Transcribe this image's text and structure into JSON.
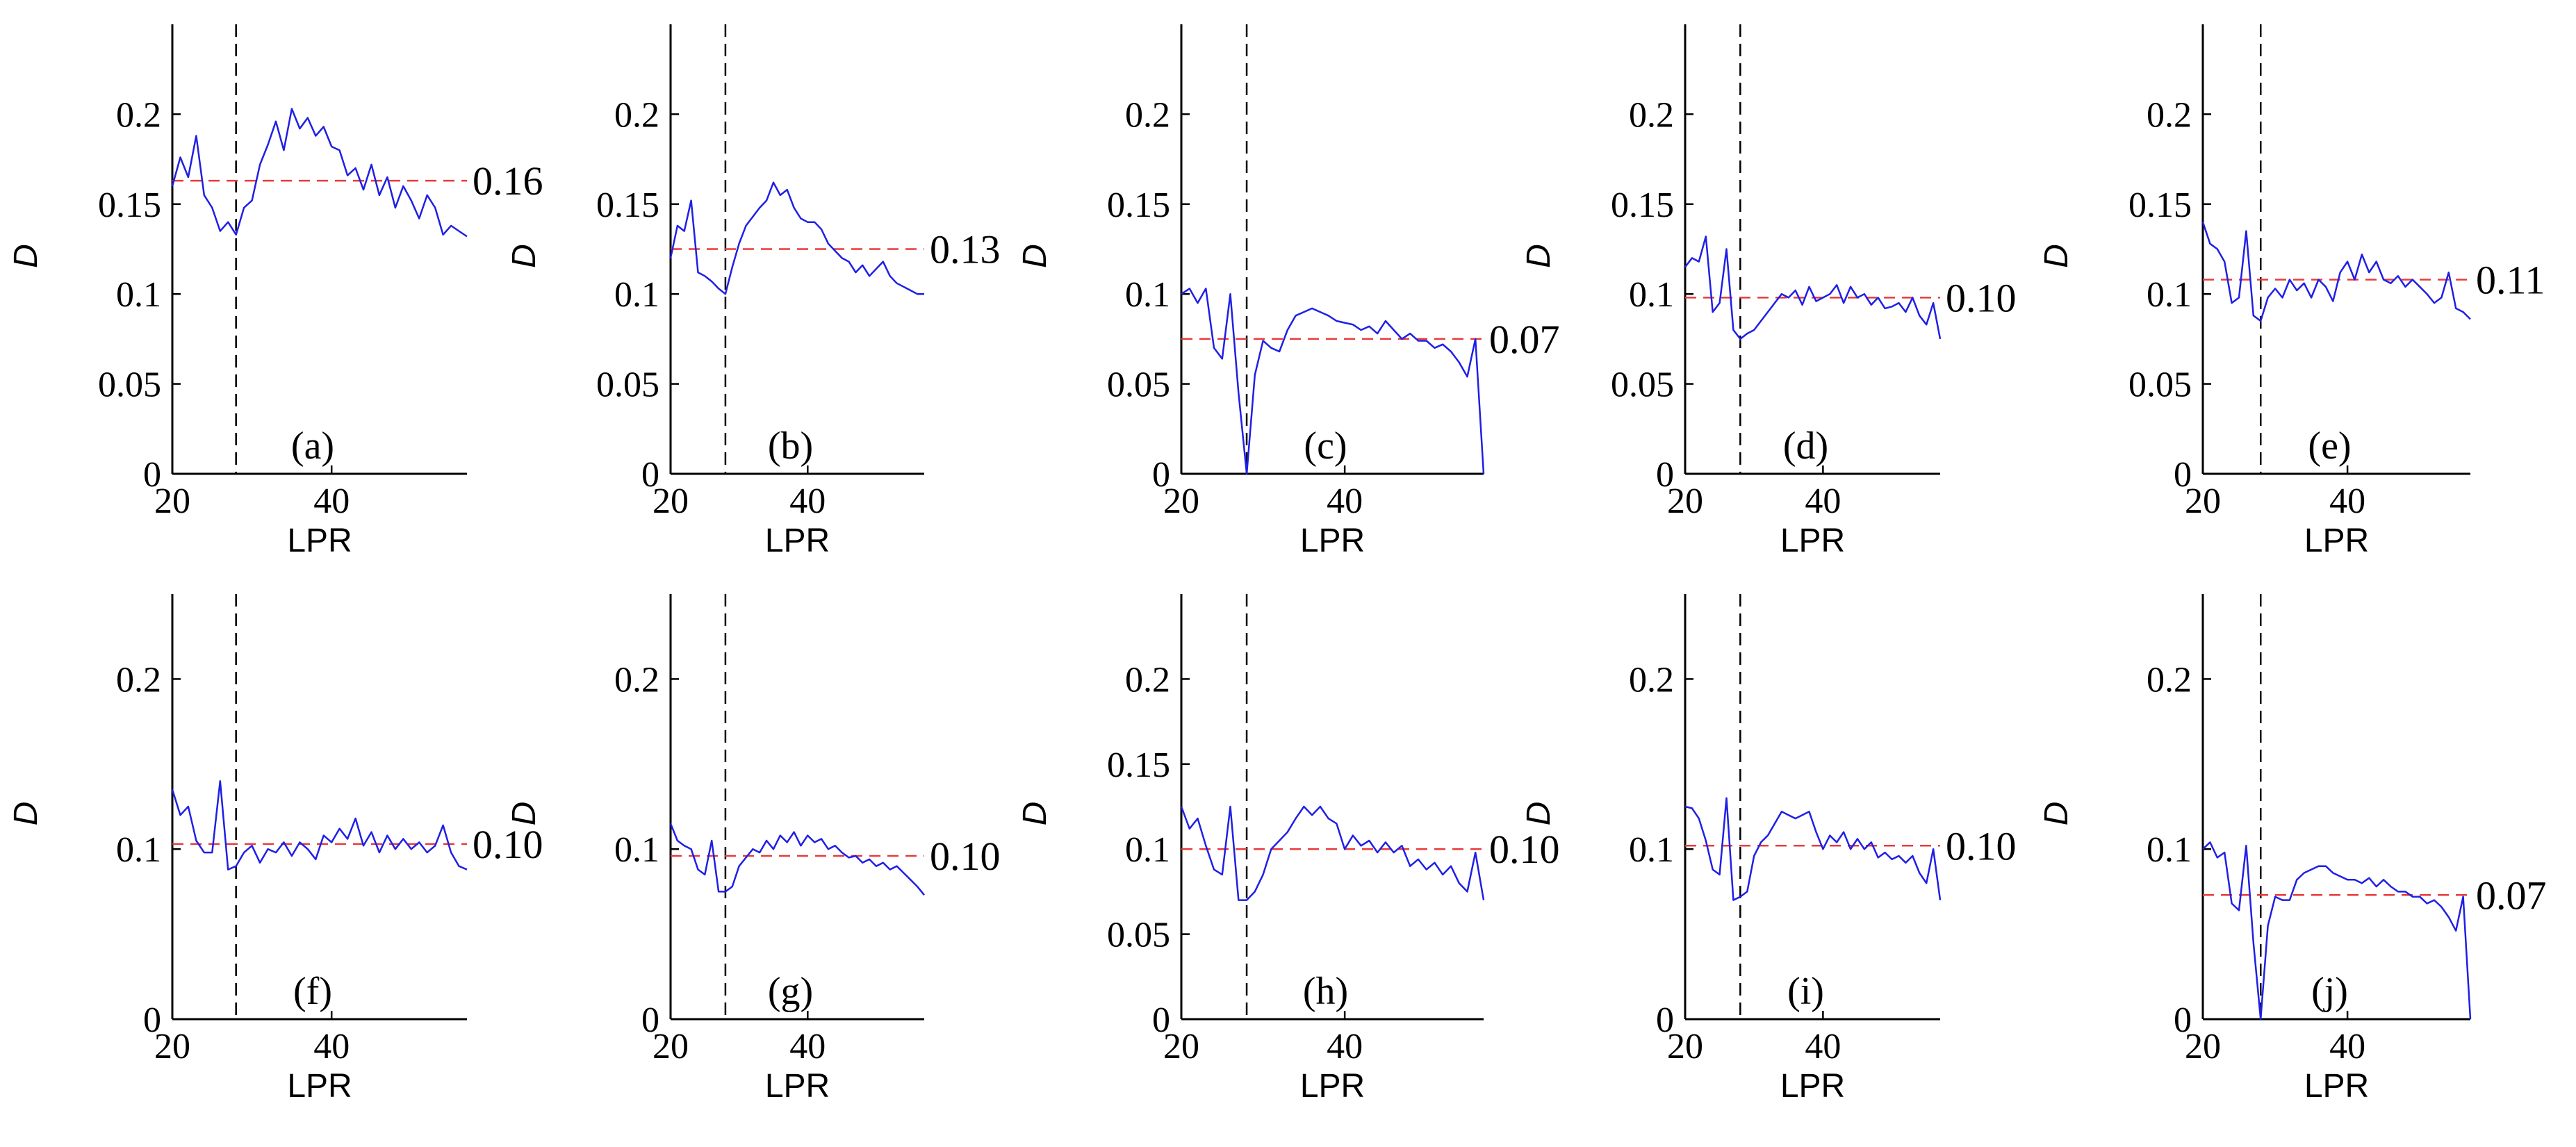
{
  "figure": {
    "line_color": "#1f1fe6",
    "mean_color": "#e83c3c",
    "axis_color": "#000000"
  },
  "chart_data": [
    {
      "type": "line",
      "panel_label": "(a)",
      "xlabel": "LPR",
      "ylabel": "D",
      "xlim": [
        20,
        57
      ],
      "ylim": [
        0,
        0.25
      ],
      "xticks": [
        "20",
        "40"
      ],
      "yticks": [
        "0",
        "0.05",
        "0.1",
        "0.15",
        "0.2"
      ],
      "vline_x": 28,
      "mean_value": 0.163,
      "mean_label": "0.16",
      "series": [
        {
          "x": [
            20,
            21,
            22,
            23,
            24,
            25,
            26,
            27,
            28,
            29,
            30,
            31,
            32,
            33,
            34,
            35,
            36,
            37,
            38,
            39,
            40,
            41,
            42,
            43,
            44,
            45,
            46,
            47,
            48,
            49,
            50,
            51,
            52,
            53,
            54,
            55,
            56,
            57
          ],
          "y": [
            0.16,
            0.176,
            0.165,
            0.188,
            0.155,
            0.148,
            0.135,
            0.14,
            0.133,
            0.148,
            0.152,
            0.172,
            0.183,
            0.196,
            0.18,
            0.203,
            0.192,
            0.198,
            0.188,
            0.193,
            0.182,
            0.18,
            0.166,
            0.17,
            0.158,
            0.172,
            0.155,
            0.165,
            0.148,
            0.16,
            0.152,
            0.142,
            0.155,
            0.148,
            0.133,
            0.138,
            0.135,
            0.132
          ]
        }
      ]
    },
    {
      "type": "line",
      "panel_label": "(b)",
      "xlabel": "LPR",
      "ylabel": "D",
      "xlim": [
        20,
        57
      ],
      "ylim": [
        0,
        0.25
      ],
      "xticks": [
        "20",
        "40"
      ],
      "yticks": [
        "0",
        "0.05",
        "0.1",
        "0.15",
        "0.2"
      ],
      "vline_x": 28,
      "mean_value": 0.125,
      "mean_label": "0.13",
      "series": [
        {
          "x": [
            20,
            21,
            22,
            23,
            24,
            25,
            26,
            27,
            28,
            29,
            30,
            31,
            32,
            33,
            34,
            35,
            36,
            37,
            38,
            39,
            40,
            41,
            42,
            43,
            44,
            45,
            46,
            47,
            48,
            49,
            50,
            51,
            52,
            53,
            54,
            55,
            56,
            57
          ],
          "y": [
            0.12,
            0.138,
            0.135,
            0.152,
            0.112,
            0.11,
            0.107,
            0.103,
            0.1,
            0.115,
            0.128,
            0.138,
            0.143,
            0.148,
            0.152,
            0.162,
            0.155,
            0.158,
            0.148,
            0.142,
            0.14,
            0.14,
            0.136,
            0.128,
            0.124,
            0.12,
            0.118,
            0.112,
            0.116,
            0.11,
            0.114,
            0.118,
            0.11,
            0.106,
            0.104,
            0.102,
            0.1,
            0.1
          ]
        }
      ]
    },
    {
      "type": "line",
      "panel_label": "(c)",
      "xlabel": "LPR",
      "ylabel": "D",
      "xlim": [
        20,
        57
      ],
      "ylim": [
        0,
        0.25
      ],
      "xticks": [
        "20",
        "40"
      ],
      "yticks": [
        "0",
        "0.05",
        "0.1",
        "0.15",
        "0.2"
      ],
      "vline_x": 28,
      "mean_value": 0.075,
      "mean_label": "0.07",
      "series": [
        {
          "x": [
            20,
            21,
            22,
            23,
            24,
            25,
            26,
            27,
            28,
            29,
            30,
            31,
            32,
            33,
            34,
            35,
            36,
            37,
            38,
            39,
            40,
            41,
            42,
            43,
            44,
            45,
            46,
            47,
            48,
            49,
            50,
            51,
            52,
            53,
            54,
            55,
            56,
            57
          ],
          "y": [
            0.1,
            0.103,
            0.095,
            0.103,
            0.07,
            0.064,
            0.1,
            0.045,
            0.0,
            0.055,
            0.074,
            0.07,
            0.068,
            0.08,
            0.088,
            0.09,
            0.092,
            0.09,
            0.088,
            0.085,
            0.084,
            0.083,
            0.08,
            0.082,
            0.078,
            0.085,
            0.08,
            0.075,
            0.078,
            0.074,
            0.074,
            0.07,
            0.072,
            0.068,
            0.062,
            0.054,
            0.075,
            0.0
          ]
        }
      ]
    },
    {
      "type": "line",
      "panel_label": "(d)",
      "xlabel": "LPR",
      "ylabel": "D",
      "xlim": [
        20,
        57
      ],
      "ylim": [
        0,
        0.25
      ],
      "xticks": [
        "20",
        "40"
      ],
      "yticks": [
        "0",
        "0.05",
        "0.1",
        "0.15",
        "0.2"
      ],
      "vline_x": 28,
      "mean_value": 0.098,
      "mean_label": "0.10",
      "series": [
        {
          "x": [
            20,
            21,
            22,
            23,
            24,
            25,
            26,
            27,
            28,
            29,
            30,
            31,
            32,
            33,
            34,
            35,
            36,
            37,
            38,
            39,
            40,
            41,
            42,
            43,
            44,
            45,
            46,
            47,
            48,
            49,
            50,
            51,
            52,
            53,
            54,
            55,
            56,
            57
          ],
          "y": [
            0.115,
            0.12,
            0.118,
            0.132,
            0.09,
            0.095,
            0.125,
            0.08,
            0.075,
            0.078,
            0.08,
            0.085,
            0.09,
            0.095,
            0.1,
            0.098,
            0.102,
            0.094,
            0.104,
            0.096,
            0.098,
            0.1,
            0.105,
            0.095,
            0.104,
            0.098,
            0.1,
            0.094,
            0.098,
            0.092,
            0.093,
            0.095,
            0.09,
            0.098,
            0.088,
            0.083,
            0.095,
            0.075
          ]
        }
      ]
    },
    {
      "type": "line",
      "panel_label": "(e)",
      "xlabel": "LPR",
      "ylabel": "D",
      "xlim": [
        20,
        57
      ],
      "ylim": [
        0,
        0.25
      ],
      "xticks": [
        "20",
        "40"
      ],
      "yticks": [
        "0",
        "0.05",
        "0.1",
        "0.15",
        "0.2"
      ],
      "vline_x": 28,
      "mean_value": 0.108,
      "mean_label": "0.11",
      "series": [
        {
          "x": [
            20,
            21,
            22,
            23,
            24,
            25,
            26,
            27,
            28,
            29,
            30,
            31,
            32,
            33,
            34,
            35,
            36,
            37,
            38,
            39,
            40,
            41,
            42,
            43,
            44,
            45,
            46,
            47,
            48,
            49,
            50,
            51,
            52,
            53,
            54,
            55,
            56,
            57
          ],
          "y": [
            0.14,
            0.128,
            0.125,
            0.118,
            0.095,
            0.098,
            0.135,
            0.088,
            0.085,
            0.098,
            0.103,
            0.098,
            0.108,
            0.102,
            0.106,
            0.098,
            0.108,
            0.104,
            0.096,
            0.112,
            0.118,
            0.108,
            0.122,
            0.112,
            0.118,
            0.108,
            0.106,
            0.11,
            0.104,
            0.108,
            0.104,
            0.1,
            0.095,
            0.098,
            0.112,
            0.092,
            0.09,
            0.086
          ]
        }
      ]
    },
    {
      "type": "line",
      "panel_label": "(f)",
      "xlabel": "LPR",
      "ylabel": "D",
      "xlim": [
        20,
        57
      ],
      "ylim": [
        0,
        0.25
      ],
      "xticks": [
        "20",
        "40"
      ],
      "yticks": [
        "0",
        "0.1",
        "0.2"
      ],
      "vline_x": 28,
      "mean_value": 0.103,
      "mean_label": "0.10",
      "series": [
        {
          "x": [
            20,
            21,
            22,
            23,
            24,
            25,
            26,
            27,
            28,
            29,
            30,
            31,
            32,
            33,
            34,
            35,
            36,
            37,
            38,
            39,
            40,
            41,
            42,
            43,
            44,
            45,
            46,
            47,
            48,
            49,
            50,
            51,
            52,
            53,
            54,
            55,
            56,
            57
          ],
          "y": [
            0.135,
            0.12,
            0.125,
            0.105,
            0.098,
            0.098,
            0.14,
            0.088,
            0.09,
            0.098,
            0.102,
            0.092,
            0.1,
            0.098,
            0.104,
            0.096,
            0.104,
            0.1,
            0.094,
            0.108,
            0.104,
            0.112,
            0.106,
            0.118,
            0.102,
            0.11,
            0.098,
            0.108,
            0.1,
            0.106,
            0.1,
            0.104,
            0.098,
            0.102,
            0.114,
            0.098,
            0.09,
            0.088
          ]
        }
      ]
    },
    {
      "type": "line",
      "panel_label": "(g)",
      "xlabel": "LPR",
      "ylabel": "D",
      "xlim": [
        20,
        57
      ],
      "ylim": [
        0,
        0.25
      ],
      "xticks": [
        "20",
        "40"
      ],
      "yticks": [
        "0",
        "0.1",
        "0.2"
      ],
      "vline_x": 28,
      "mean_value": 0.096,
      "mean_label": "0.10",
      "series": [
        {
          "x": [
            20,
            21,
            22,
            23,
            24,
            25,
            26,
            27,
            28,
            29,
            30,
            31,
            32,
            33,
            34,
            35,
            36,
            37,
            38,
            39,
            40,
            41,
            42,
            43,
            44,
            45,
            46,
            47,
            48,
            49,
            50,
            51,
            52,
            53,
            54,
            55,
            56,
            57
          ],
          "y": [
            0.115,
            0.105,
            0.102,
            0.1,
            0.088,
            0.085,
            0.105,
            0.075,
            0.075,
            0.078,
            0.09,
            0.095,
            0.1,
            0.098,
            0.105,
            0.1,
            0.108,
            0.104,
            0.11,
            0.102,
            0.108,
            0.104,
            0.106,
            0.1,
            0.102,
            0.098,
            0.095,
            0.096,
            0.092,
            0.094,
            0.09,
            0.092,
            0.088,
            0.09,
            0.086,
            0.082,
            0.078,
            0.073
          ]
        }
      ]
    },
    {
      "type": "line",
      "panel_label": "(h)",
      "xlabel": "LPR",
      "ylabel": "D",
      "xlim": [
        20,
        57
      ],
      "ylim": [
        0,
        0.25
      ],
      "xticks": [
        "20",
        "40"
      ],
      "yticks": [
        "0",
        "0.05",
        "0.1",
        "0.15",
        "0.2"
      ],
      "vline_x": 28,
      "mean_value": 0.1,
      "mean_label": "0.10",
      "series": [
        {
          "x": [
            20,
            21,
            22,
            23,
            24,
            25,
            26,
            27,
            28,
            29,
            30,
            31,
            32,
            33,
            34,
            35,
            36,
            37,
            38,
            39,
            40,
            41,
            42,
            43,
            44,
            45,
            46,
            47,
            48,
            49,
            50,
            51,
            52,
            53,
            54,
            55,
            56,
            57
          ],
          "y": [
            0.125,
            0.112,
            0.118,
            0.102,
            0.088,
            0.085,
            0.125,
            0.07,
            0.07,
            0.075,
            0.085,
            0.1,
            0.105,
            0.11,
            0.118,
            0.125,
            0.12,
            0.125,
            0.118,
            0.115,
            0.1,
            0.108,
            0.102,
            0.105,
            0.098,
            0.104,
            0.098,
            0.102,
            0.09,
            0.094,
            0.088,
            0.092,
            0.085,
            0.09,
            0.08,
            0.075,
            0.098,
            0.07
          ]
        }
      ]
    },
    {
      "type": "line",
      "panel_label": "(i)",
      "xlabel": "LPR",
      "ylabel": "D",
      "xlim": [
        20,
        57
      ],
      "ylim": [
        0,
        0.25
      ],
      "xticks": [
        "20",
        "40"
      ],
      "yticks": [
        "0",
        "0.1",
        "0.2"
      ],
      "vline_x": 28,
      "mean_value": 0.102,
      "mean_label": "0.10",
      "series": [
        {
          "x": [
            20,
            21,
            22,
            23,
            24,
            25,
            26,
            27,
            28,
            29,
            30,
            31,
            32,
            33,
            34,
            35,
            36,
            37,
            38,
            39,
            40,
            41,
            42,
            43,
            44,
            45,
            46,
            47,
            48,
            49,
            50,
            51,
            52,
            53,
            54,
            55,
            56,
            57
          ],
          "y": [
            0.125,
            0.124,
            0.118,
            0.105,
            0.088,
            0.085,
            0.13,
            0.07,
            0.072,
            0.075,
            0.096,
            0.104,
            0.108,
            0.115,
            0.122,
            0.12,
            0.118,
            0.12,
            0.122,
            0.11,
            0.1,
            0.108,
            0.104,
            0.11,
            0.1,
            0.106,
            0.1,
            0.104,
            0.095,
            0.098,
            0.094,
            0.096,
            0.092,
            0.096,
            0.086,
            0.08,
            0.1,
            0.07
          ]
        }
      ]
    },
    {
      "type": "line",
      "panel_label": "(j)",
      "xlabel": "LPR",
      "ylabel": "D",
      "xlim": [
        20,
        57
      ],
      "ylim": [
        0,
        0.25
      ],
      "xticks": [
        "20",
        "40"
      ],
      "yticks": [
        "0",
        "0.1",
        "0.2"
      ],
      "vline_x": 28,
      "mean_value": 0.073,
      "mean_label": "0.07",
      "series": [
        {
          "x": [
            20,
            21,
            22,
            23,
            24,
            25,
            26,
            27,
            28,
            29,
            30,
            31,
            32,
            33,
            34,
            35,
            36,
            37,
            38,
            39,
            40,
            41,
            42,
            43,
            44,
            45,
            46,
            47,
            48,
            49,
            50,
            51,
            52,
            53,
            54,
            55,
            56,
            57
          ],
          "y": [
            0.1,
            0.104,
            0.095,
            0.098,
            0.068,
            0.064,
            0.102,
            0.045,
            0.0,
            0.055,
            0.072,
            0.07,
            0.07,
            0.082,
            0.086,
            0.088,
            0.09,
            0.09,
            0.086,
            0.084,
            0.082,
            0.082,
            0.08,
            0.083,
            0.078,
            0.082,
            0.078,
            0.075,
            0.075,
            0.072,
            0.072,
            0.068,
            0.07,
            0.066,
            0.06,
            0.052,
            0.072,
            0.0
          ]
        }
      ]
    }
  ]
}
